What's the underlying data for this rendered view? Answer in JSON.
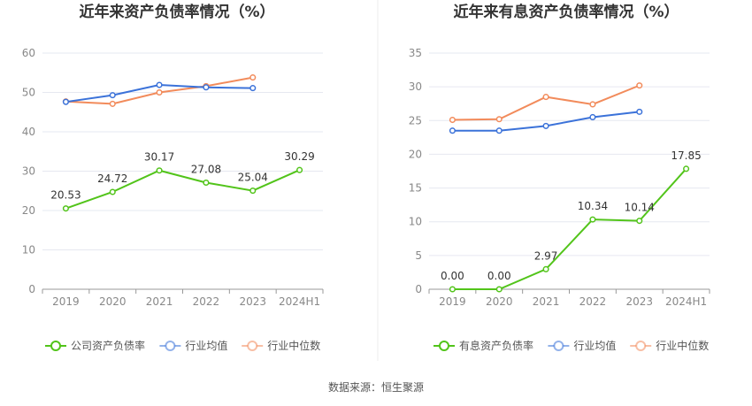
{
  "colors": {
    "company": "#52c41a",
    "avg": "#3b72d9",
    "median": "#f28b5b",
    "grid": "#e6e8f0",
    "axis": "#999999"
  },
  "source_text": "数据来源：恒生聚源",
  "chart_data": [
    {
      "type": "line",
      "title": "近年来资产负债率情况（%）",
      "categories": [
        "2019",
        "2020",
        "2021",
        "2022",
        "2023",
        "2024H1"
      ],
      "ylim": [
        0,
        60
      ],
      "yticks": [
        0,
        10,
        20,
        30,
        40,
        50,
        60
      ],
      "grid": true,
      "legend_position": "bottom",
      "series": [
        {
          "name": "公司资产负债率",
          "color": "#52c41a",
          "labeled": true,
          "values": [
            20.53,
            24.72,
            30.17,
            27.08,
            25.04,
            30.29
          ],
          "labels": [
            "20.53",
            "24.72",
            "30.17",
            "27.08",
            "25.04",
            "30.29"
          ]
        },
        {
          "name": "行业均值",
          "color": "#3b72d9",
          "labeled": false,
          "values": [
            47.6,
            49.3,
            51.9,
            51.3,
            51.1,
            null
          ]
        },
        {
          "name": "行业中位数",
          "color": "#f28b5b",
          "labeled": false,
          "values": [
            47.7,
            47.1,
            50.0,
            51.6,
            53.8,
            null
          ]
        }
      ]
    },
    {
      "type": "line",
      "title": "近年来有息资产负债率情况（%）",
      "categories": [
        "2019",
        "2020",
        "2021",
        "2022",
        "2023",
        "2024H1"
      ],
      "ylim": [
        0,
        35
      ],
      "yticks": [
        0,
        5,
        10,
        15,
        20,
        25,
        30,
        35
      ],
      "grid": true,
      "legend_position": "bottom",
      "series": [
        {
          "name": "有息资产负债率",
          "color": "#52c41a",
          "labeled": true,
          "values": [
            0.0,
            0.0,
            2.97,
            10.34,
            10.14,
            17.85
          ],
          "labels": [
            "0.00",
            "0.00",
            "2.97",
            "10.34",
            "10.14",
            "17.85"
          ]
        },
        {
          "name": "行业均值",
          "color": "#3b72d9",
          "labeled": false,
          "values": [
            23.5,
            23.5,
            24.2,
            25.5,
            26.3,
            null
          ]
        },
        {
          "name": "行业中位数",
          "color": "#f28b5b",
          "labeled": false,
          "values": [
            25.1,
            25.2,
            28.5,
            27.4,
            30.2,
            null
          ]
        }
      ]
    }
  ]
}
